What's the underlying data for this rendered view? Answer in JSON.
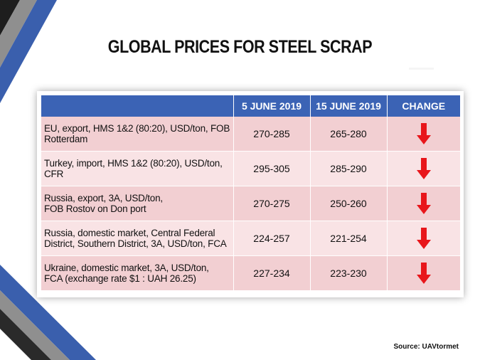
{
  "title": "GLOBAL PRICES FOR STEEL SCRAP",
  "table": {
    "columns": [
      "",
      "5 JUNE 2019",
      "15 JUNE 2019",
      "CHANGE"
    ],
    "rows": [
      {
        "line1": "EU, export, HMS 1&2 (80:20), USD/ton, FOB",
        "line2": "Rotterdam",
        "v1": "270-285",
        "v2": "265-280",
        "change": "down"
      },
      {
        "line1": "Turkey, import, HMS 1&2 (80:20), USD/ton,",
        "line2": "CFR",
        "v1": "295-305",
        "v2": "285-290",
        "change": "down"
      },
      {
        "line1": "Russia, export, 3A, USD/ton,",
        "line2": "FOB Rostov on Don port",
        "v1": "270-275",
        "v2": "250-260",
        "change": "down"
      },
      {
        "line1": "Russia, domestic market, Central Federal",
        "line2": "District, Southern District, 3A, USD/ton, FCA",
        "v1": "224-257",
        "v2": "221-254",
        "change": "down"
      },
      {
        "line1": "Ukraine, domestic market, 3A, USD/ton,",
        "line2": "FCA  (exchange rate $1 : UAH 26.25)",
        "v1": "227-234",
        "v2": "223-230",
        "change": "down"
      }
    ]
  },
  "source": "Source: UAVtormet",
  "colors": {
    "header_bg": "#3b63b5",
    "row_dark": "#f2cfd2",
    "row_light": "#f9e3e5",
    "arrow": "#e8161b"
  }
}
